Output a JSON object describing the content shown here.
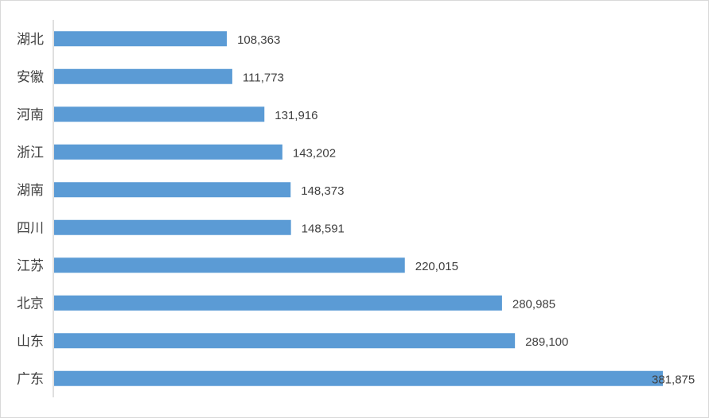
{
  "chart_data": {
    "type": "bar",
    "orientation": "horizontal",
    "categories": [
      "湖北",
      "安徽",
      "河南",
      "浙江",
      "湖南",
      "四川",
      "江苏",
      "北京",
      "山东",
      "广东"
    ],
    "values": [
      108363,
      111773,
      131916,
      143202,
      148373,
      148591,
      220015,
      280985,
      289100,
      381875
    ],
    "data_labels": [
      "108,363",
      "111,773",
      "131,916",
      "143,202",
      "148,373",
      "148,591",
      "220,015",
      "280,985",
      "289,100",
      "381,875"
    ],
    "title": "",
    "xlabel": "",
    "ylabel": "",
    "xlim": [
      0,
      400000
    ],
    "grid": false,
    "legend": "none",
    "bar_color": "#5b9bd5"
  }
}
